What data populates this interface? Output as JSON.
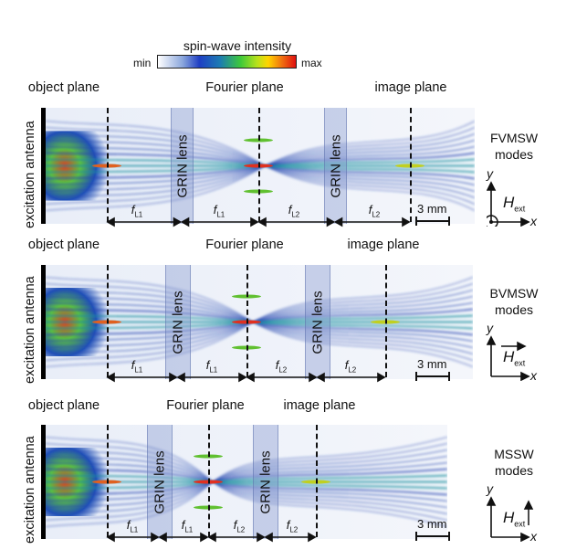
{
  "colorbar": {
    "title": "spin-wave intensity",
    "min_label": "min",
    "max_label": "max",
    "colors": [
      "#ffffff",
      "#8aa6dc",
      "#1f3fc4",
      "#1d7bb3",
      "#3ec93a",
      "#b8e21c",
      "#ffd400",
      "#f07010",
      "#e01010"
    ]
  },
  "panels": [
    {
      "mode_line1": "FVMSW",
      "mode_line2": "modes",
      "antenna_label": "excitation antenna",
      "object_plane": "object plane",
      "fourier_plane": "Fourier plane",
      "image_plane": "image plane",
      "lens_label": "GRIN lens",
      "f_labels": [
        [
          "f",
          "L1"
        ],
        [
          "f",
          "L1"
        ],
        [
          "f",
          "L2"
        ],
        [
          "f",
          "L2"
        ]
      ],
      "scale": "3 mm",
      "axis_y": "y",
      "axis_x": "x",
      "field_label": "H",
      "field_sub": "ext",
      "field_dir": "out-of-plane"
    },
    {
      "mode_line1": "BVMSW",
      "mode_line2": "modes",
      "antenna_label": "excitation antenna",
      "object_plane": "object plane",
      "fourier_plane": "Fourier plane",
      "image_plane": "image plane",
      "lens_label": "GRIN lens",
      "f_labels": [
        [
          "f",
          "L1"
        ],
        [
          "f",
          "L1"
        ],
        [
          "f",
          "L2"
        ],
        [
          "f",
          "L2"
        ]
      ],
      "scale": "3 mm",
      "axis_y": "y",
      "axis_x": "x",
      "field_label": "H",
      "field_sub": "ext",
      "field_dir": "+x"
    },
    {
      "mode_line1": "MSSW",
      "mode_line2": "modes",
      "antenna_label": "excitation antenna",
      "object_plane": "object plane",
      "fourier_plane": "Fourier plane",
      "image_plane": "image plane",
      "lens_label": "GRIN lens",
      "f_labels": [
        [
          "f",
          "L1"
        ],
        [
          "f",
          "L1"
        ],
        [
          "f",
          "L2"
        ],
        [
          "f",
          "L2"
        ]
      ],
      "scale": "3 mm",
      "axis_y": "y",
      "axis_x": "x",
      "field_label": "H",
      "field_sub": "ext",
      "field_dir": "+y"
    }
  ]
}
